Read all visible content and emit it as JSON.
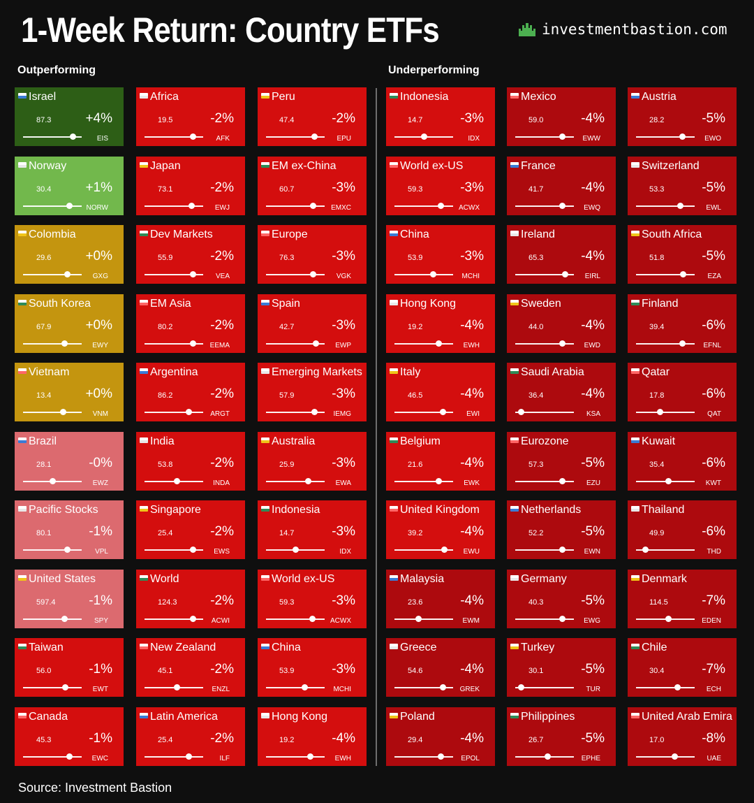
{
  "header": {
    "title": "1-Week Return: Country ETFs",
    "brand": "investmentbastion.com",
    "outperforming_label": "Outperforming",
    "underperforming_label": "Underperforming",
    "source": "Source: Investment Bastion"
  },
  "colors": {
    "dark_green": "#2d5e16",
    "light_green": "#72b84c",
    "gold": "#c4950f",
    "pink": "#dc6a6f",
    "red": "#d40e0e",
    "deep_red": "#ad0a0e",
    "background": "#0f0f0f",
    "brand_icon": "#4caf50"
  },
  "chart_data": {
    "type": "table",
    "title": "1-Week Return: Country ETFs",
    "columns": [
      {
        "group": "Outperforming",
        "tiles": [
          {
            "name": "Israel",
            "price": "87.3",
            "return": "+4%",
            "ticker": "EIS",
            "return_value": 4,
            "color": "#2d5e16",
            "slider": 0.85
          },
          {
            "name": "Norway",
            "price": "30.4",
            "return": "+1%",
            "ticker": "NORW",
            "return_value": 1,
            "color": "#72b84c",
            "slider": 0.78
          },
          {
            "name": "Colombia",
            "price": "29.6",
            "return": "+0%",
            "ticker": "GXG",
            "return_value": 0,
            "color": "#c4950f",
            "slider": 0.75
          },
          {
            "name": "South Korea",
            "price": "67.9",
            "return": "+0%",
            "ticker": "EWY",
            "return_value": 0,
            "color": "#c4950f",
            "slider": 0.7
          },
          {
            "name": "Vietnam",
            "price": "13.4",
            "return": "+0%",
            "ticker": "VNM",
            "return_value": 0,
            "color": "#c4950f",
            "slider": 0.68
          },
          {
            "name": "Brazil",
            "price": "28.1",
            "return": "-0%",
            "ticker": "EWZ",
            "return_value": 0,
            "color": "#dc6a6f",
            "slider": 0.5
          },
          {
            "name": "Pacific Stocks",
            "price": "80.1",
            "return": "-1%",
            "ticker": "VPL",
            "return_value": -1,
            "color": "#dc6a6f",
            "slider": 0.75
          },
          {
            "name": "United States",
            "price": "597.4",
            "return": "-1%",
            "ticker": "SPY",
            "return_value": -1,
            "color": "#dc6a6f",
            "slider": 0.7
          },
          {
            "name": "Taiwan",
            "price": "56.0",
            "return": "-1%",
            "ticker": "EWT",
            "return_value": -1,
            "color": "#d40e0e",
            "slider": 0.72
          },
          {
            "name": "Canada",
            "price": "45.3",
            "return": "-1%",
            "ticker": "EWC",
            "return_value": -1,
            "color": "#d40e0e",
            "slider": 0.78
          }
        ]
      },
      {
        "group": "Outperforming",
        "tiles": [
          {
            "name": "Africa",
            "price": "19.5",
            "return": "-2%",
            "ticker": "AFK",
            "return_value": -2,
            "color": "#d40e0e",
            "slider": 0.82
          },
          {
            "name": "Japan",
            "price": "73.1",
            "return": "-2%",
            "ticker": "EWJ",
            "return_value": -2,
            "color": "#d40e0e",
            "slider": 0.8
          },
          {
            "name": "Dev Markets",
            "price": "55.9",
            "return": "-2%",
            "ticker": "VEA",
            "return_value": -2,
            "color": "#d40e0e",
            "slider": 0.82
          },
          {
            "name": "EM Asia",
            "price": "80.2",
            "return": "-2%",
            "ticker": "EEMA",
            "return_value": -2,
            "color": "#d40e0e",
            "slider": 0.82
          },
          {
            "name": "Argentina",
            "price": "86.2",
            "return": "-2%",
            "ticker": "ARGT",
            "return_value": -2,
            "color": "#d40e0e",
            "slider": 0.75
          },
          {
            "name": "India",
            "price": "53.8",
            "return": "-2%",
            "ticker": "INDA",
            "return_value": -2,
            "color": "#d40e0e",
            "slider": 0.55
          },
          {
            "name": "Singapore",
            "price": "25.4",
            "return": "-2%",
            "ticker": "EWS",
            "return_value": -2,
            "color": "#d40e0e",
            "slider": 0.82
          },
          {
            "name": "World",
            "price": "124.3",
            "return": "-2%",
            "ticker": "ACWI",
            "return_value": -2,
            "color": "#d40e0e",
            "slider": 0.82
          },
          {
            "name": "New Zealand",
            "price": "45.1",
            "return": "-2%",
            "ticker": "ENZL",
            "return_value": -2,
            "color": "#d40e0e",
            "slider": 0.55
          },
          {
            "name": "Latin America",
            "price": "25.4",
            "return": "-2%",
            "ticker": "ILF",
            "return_value": -2,
            "color": "#d40e0e",
            "slider": 0.75
          }
        ]
      },
      {
        "group": "Outperforming",
        "tiles": [
          {
            "name": "Peru",
            "price": "47.4",
            "return": "-2%",
            "ticker": "EPU",
            "return_value": -2,
            "color": "#d40e0e",
            "slider": 0.82
          },
          {
            "name": "EM ex-China",
            "price": "60.7",
            "return": "-3%",
            "ticker": "EMXC",
            "return_value": -3,
            "color": "#d40e0e",
            "slider": 0.8
          },
          {
            "name": "Europe",
            "price": "76.3",
            "return": "-3%",
            "ticker": "VGK",
            "return_value": -3,
            "color": "#d40e0e",
            "slider": 0.8
          },
          {
            "name": "Spain",
            "price": "42.7",
            "return": "-3%",
            "ticker": "EWP",
            "return_value": -3,
            "color": "#d40e0e",
            "slider": 0.85
          },
          {
            "name": "Emerging Markets",
            "price": "57.9",
            "return": "-3%",
            "ticker": "IEMG",
            "return_value": -3,
            "color": "#d40e0e",
            "slider": 0.82
          },
          {
            "name": "Australia",
            "price": "25.9",
            "return": "-3%",
            "ticker": "EWA",
            "return_value": -3,
            "color": "#d40e0e",
            "slider": 0.72
          },
          {
            "name": "Indonesia",
            "price": "14.7",
            "return": "-3%",
            "ticker": "IDX",
            "return_value": -3,
            "color": "#d40e0e",
            "slider": 0.5
          },
          {
            "name": "World ex-US",
            "price": "59.3",
            "return": "-3%",
            "ticker": "ACWX",
            "return_value": -3,
            "color": "#d40e0e",
            "slider": 0.78
          },
          {
            "name": "China",
            "price": "53.9",
            "return": "-3%",
            "ticker": "MCHI",
            "return_value": -3,
            "color": "#d40e0e",
            "slider": 0.65
          },
          {
            "name": "Hong Kong",
            "price": "19.2",
            "return": "-4%",
            "ticker": "EWH",
            "return_value": -4,
            "color": "#d40e0e",
            "slider": 0.75
          }
        ]
      },
      {
        "group": "Underperforming",
        "tiles": [
          {
            "name": "Indonesia",
            "price": "14.7",
            "return": "-3%",
            "ticker": "IDX",
            "return_value": -3,
            "color": "#d40e0e",
            "slider": 0.5
          },
          {
            "name": "World ex-US",
            "price": "59.3",
            "return": "-3%",
            "ticker": "ACWX",
            "return_value": -3,
            "color": "#d40e0e",
            "slider": 0.78
          },
          {
            "name": "China",
            "price": "53.9",
            "return": "-3%",
            "ticker": "MCHI",
            "return_value": -3,
            "color": "#d40e0e",
            "slider": 0.65
          },
          {
            "name": "Hong Kong",
            "price": "19.2",
            "return": "-4%",
            "ticker": "EWH",
            "return_value": -4,
            "color": "#d40e0e",
            "slider": 0.75
          },
          {
            "name": "Italy",
            "price": "46.5",
            "return": "-4%",
            "ticker": "EWI",
            "return_value": -4,
            "color": "#d40e0e",
            "slider": 0.82
          },
          {
            "name": "Belgium",
            "price": "21.6",
            "return": "-4%",
            "ticker": "EWK",
            "return_value": -4,
            "color": "#d40e0e",
            "slider": 0.75
          },
          {
            "name": "United Kingdom",
            "price": "39.2",
            "return": "-4%",
            "ticker": "EWU",
            "return_value": -4,
            "color": "#d40e0e",
            "slider": 0.85
          },
          {
            "name": "Malaysia",
            "price": "23.6",
            "return": "-4%",
            "ticker": "EWM",
            "return_value": -4,
            "color": "#ad0a0e",
            "slider": 0.4
          },
          {
            "name": "Greece",
            "price": "54.6",
            "return": "-4%",
            "ticker": "GREK",
            "return_value": -4,
            "color": "#ad0a0e",
            "slider": 0.82
          },
          {
            "name": "Poland",
            "price": "29.4",
            "return": "-4%",
            "ticker": "EPOL",
            "return_value": -4,
            "color": "#ad0a0e",
            "slider": 0.78
          }
        ]
      },
      {
        "group": "Underperforming",
        "tiles": [
          {
            "name": "Mexico",
            "price": "59.0",
            "return": "-4%",
            "ticker": "EWW",
            "return_value": -4,
            "color": "#ad0a0e",
            "slider": 0.8
          },
          {
            "name": "France",
            "price": "41.7",
            "return": "-4%",
            "ticker": "EWQ",
            "return_value": -4,
            "color": "#ad0a0e",
            "slider": 0.8
          },
          {
            "name": "Ireland",
            "price": "65.3",
            "return": "-4%",
            "ticker": "EIRL",
            "return_value": -4,
            "color": "#ad0a0e",
            "slider": 0.85
          },
          {
            "name": "Sweden",
            "price": "44.0",
            "return": "-4%",
            "ticker": "EWD",
            "return_value": -4,
            "color": "#ad0a0e",
            "slider": 0.8
          },
          {
            "name": "Saudi Arabia",
            "price": "36.4",
            "return": "-4%",
            "ticker": "KSA",
            "return_value": -4,
            "color": "#ad0a0e",
            "slider": 0.1
          },
          {
            "name": "Eurozone",
            "price": "57.3",
            "return": "-5%",
            "ticker": "EZU",
            "return_value": -5,
            "color": "#ad0a0e",
            "slider": 0.8
          },
          {
            "name": "Netherlands",
            "price": "52.2",
            "return": "-5%",
            "ticker": "EWN",
            "return_value": -5,
            "color": "#ad0a0e",
            "slider": 0.8
          },
          {
            "name": "Germany",
            "price": "40.3",
            "return": "-5%",
            "ticker": "EWG",
            "return_value": -5,
            "color": "#ad0a0e",
            "slider": 0.8
          },
          {
            "name": "Turkey",
            "price": "30.1",
            "return": "-5%",
            "ticker": "TUR",
            "return_value": -5,
            "color": "#ad0a0e",
            "slider": 0.1
          },
          {
            "name": "Philippines",
            "price": "26.7",
            "return": "-5%",
            "ticker": "EPHE",
            "return_value": -5,
            "color": "#ad0a0e",
            "slider": 0.55
          }
        ]
      },
      {
        "group": "Underperforming",
        "tiles": [
          {
            "name": "Austria",
            "price": "28.2",
            "return": "-5%",
            "ticker": "EWO",
            "return_value": -5,
            "color": "#ad0a0e",
            "slider": 0.78
          },
          {
            "name": "Switzerland",
            "price": "53.3",
            "return": "-5%",
            "ticker": "EWL",
            "return_value": -5,
            "color": "#ad0a0e",
            "slider": 0.75
          },
          {
            "name": "South Africa",
            "price": "51.8",
            "return": "-5%",
            "ticker": "EZA",
            "return_value": -5,
            "color": "#ad0a0e",
            "slider": 0.8
          },
          {
            "name": "Finland",
            "price": "39.4",
            "return": "-6%",
            "ticker": "EFNL",
            "return_value": -6,
            "color": "#ad0a0e",
            "slider": 0.78
          },
          {
            "name": "Qatar",
            "price": "17.8",
            "return": "-6%",
            "ticker": "QAT",
            "return_value": -6,
            "color": "#ad0a0e",
            "slider": 0.4
          },
          {
            "name": "Kuwait",
            "price": "35.4",
            "return": "-6%",
            "ticker": "KWT",
            "return_value": -6,
            "color": "#ad0a0e",
            "slider": 0.55
          },
          {
            "name": "Thailand",
            "price": "49.9",
            "return": "-6%",
            "ticker": "THD",
            "return_value": -6,
            "color": "#ad0a0e",
            "slider": 0.15
          },
          {
            "name": "Denmark",
            "price": "114.5",
            "return": "-7%",
            "ticker": "EDEN",
            "return_value": -7,
            "color": "#ad0a0e",
            "slider": 0.55
          },
          {
            "name": "Chile",
            "price": "30.4",
            "return": "-7%",
            "ticker": "ECH",
            "return_value": -7,
            "color": "#ad0a0e",
            "slider": 0.7
          },
          {
            "name": "United Arab Emira",
            "price": "17.0",
            "return": "-8%",
            "ticker": "UAE",
            "return_value": -8,
            "color": "#ad0a0e",
            "slider": 0.65
          }
        ]
      }
    ]
  }
}
